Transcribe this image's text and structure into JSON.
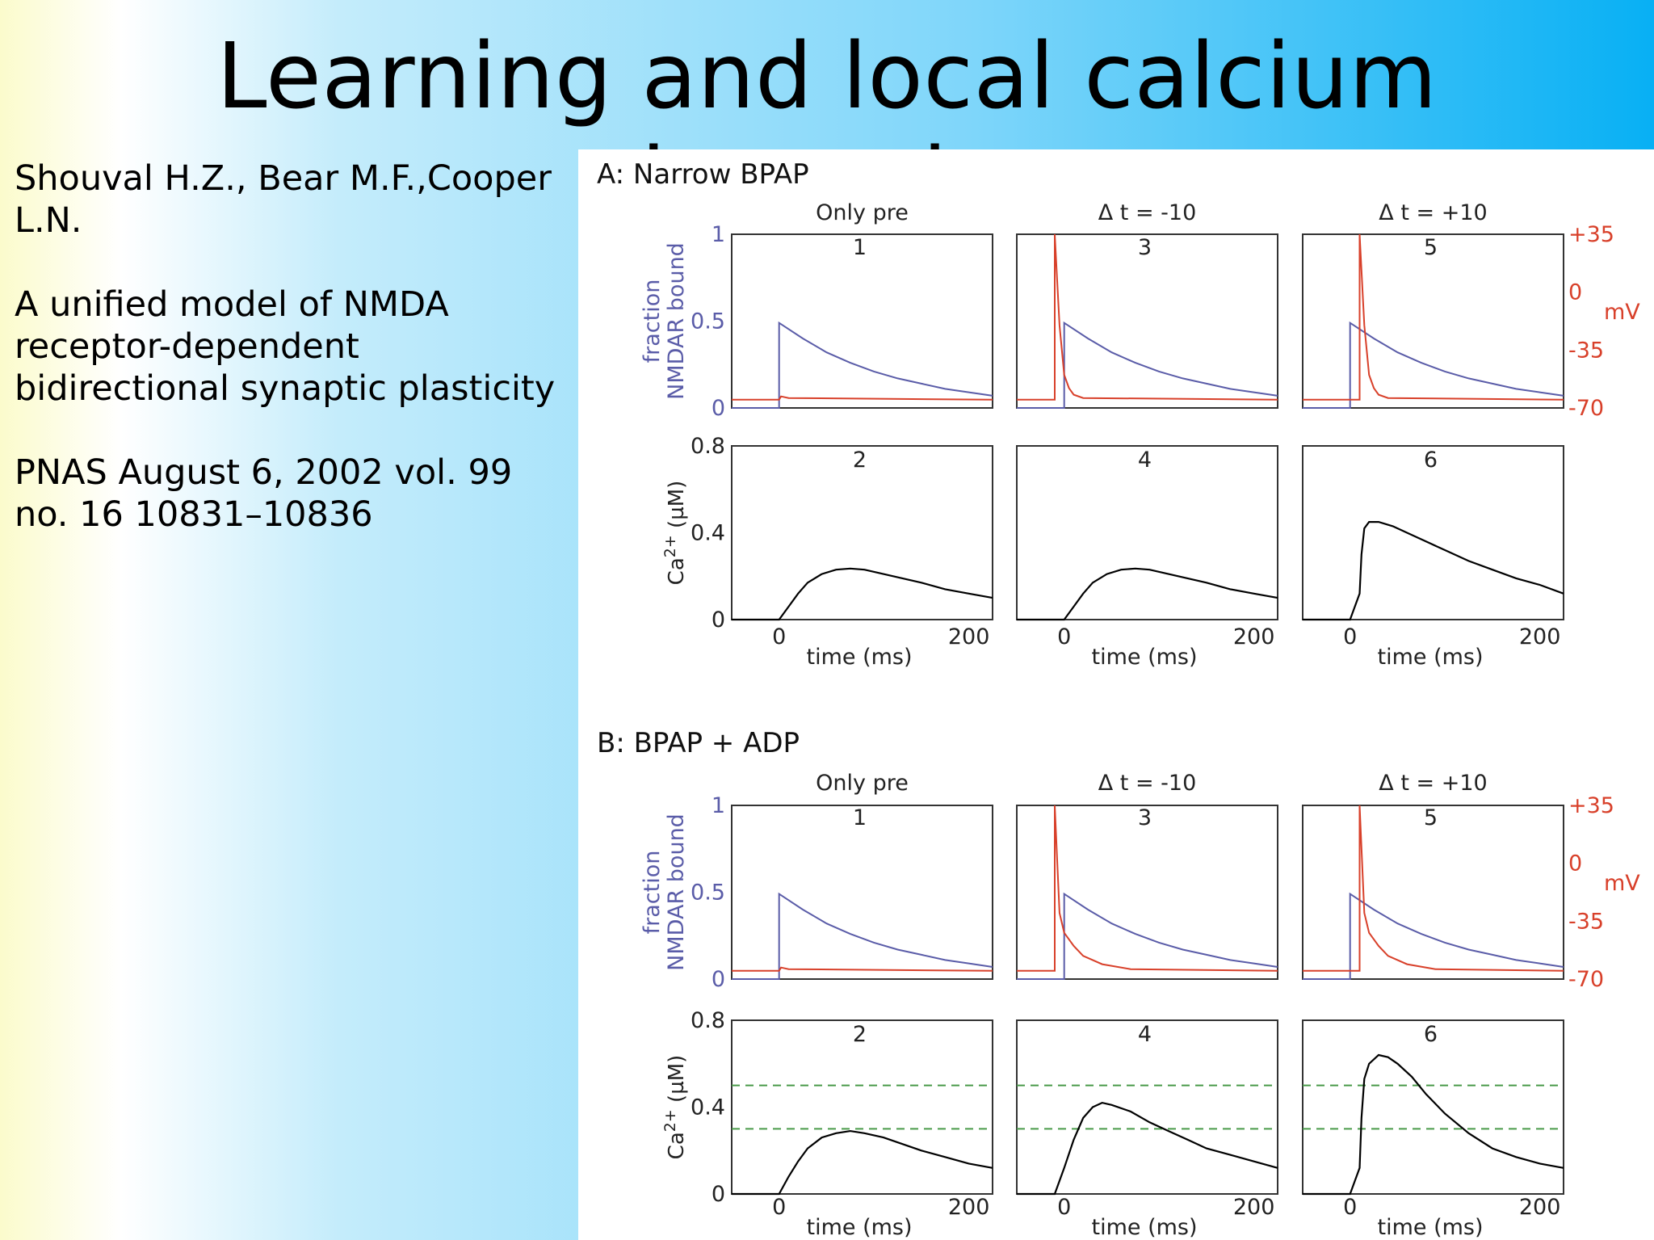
{
  "slide": {
    "title": "Learning and local calcium dynamics",
    "citation": {
      "authors": "Shouval H.Z., Bear M.F.,Cooper L.N.",
      "article": "A unified model of NMDA receptor-dependent bidirectional synaptic plasticity",
      "journal": "PNAS August 6, 2002 vol. 99 no. 16 10831–10836"
    }
  },
  "colors": {
    "nmda": "#5a5ca8",
    "voltage": "#d8402a",
    "calcium": "#000000",
    "threshold": "#4a9a4a"
  },
  "chart_data": [
    {
      "type": "line",
      "panel_title": "A: Narrow BPAP",
      "column_titles": [
        "Only pre",
        "Δ t = -10",
        "Δ t = +10"
      ],
      "top_row": {
        "subplot_numbers": [
          "1",
          "3",
          "5"
        ],
        "ylabel": "fraction NMDAR bound",
        "ylim": [
          0,
          1
        ],
        "yticks": [
          "0",
          "0.5",
          "1"
        ],
        "right_axis": {
          "label": "mV",
          "ylim": [
            -70,
            35
          ],
          "ticks": [
            "-70",
            "-35",
            "0",
            "+35"
          ]
        },
        "series": [
          {
            "name": "NMDAR bound",
            "color": "#5a5ca8",
            "curves": [
              {
                "x": [
                  -50,
                  0,
                  0,
                  25,
                  50,
                  75,
                  100,
                  125,
                  150,
                  175,
                  200,
                  225
                ],
                "y": [
                  0,
                  0,
                  0.49,
                  0.4,
                  0.32,
                  0.26,
                  0.21,
                  0.17,
                  0.14,
                  0.11,
                  0.09,
                  0.07
                ]
              },
              {
                "x": [
                  -50,
                  0,
                  0,
                  25,
                  50,
                  75,
                  100,
                  125,
                  150,
                  175,
                  200,
                  225
                ],
                "y": [
                  0,
                  0,
                  0.49,
                  0.4,
                  0.32,
                  0.26,
                  0.21,
                  0.17,
                  0.14,
                  0.11,
                  0.09,
                  0.07
                ]
              },
              {
                "x": [
                  -50,
                  0,
                  0,
                  25,
                  50,
                  75,
                  100,
                  125,
                  150,
                  175,
                  200,
                  225
                ],
                "y": [
                  0,
                  0,
                  0.49,
                  0.4,
                  0.32,
                  0.26,
                  0.21,
                  0.17,
                  0.14,
                  0.11,
                  0.09,
                  0.07
                ]
              }
            ]
          },
          {
            "name": "membrane potential (mV)",
            "color": "#d8402a",
            "curves": [
              {
                "x": [
                  -50,
                  0,
                  2,
                  10,
                  225
                ],
                "y": [
                  -65,
                  -65,
                  -63,
                  -64,
                  -65
                ]
              },
              {
                "x": [
                  -50,
                  -10,
                  -10,
                  -5,
                  0,
                  5,
                  10,
                  20,
                  225
                ],
                "y": [
                  -65,
                  -65,
                  35,
                  -20,
                  -50,
                  -58,
                  -62,
                  -64,
                  -65
                ]
              },
              {
                "x": [
                  -50,
                  10,
                  10,
                  15,
                  20,
                  25,
                  30,
                  40,
                  225
                ],
                "y": [
                  -65,
                  -65,
                  35,
                  -20,
                  -50,
                  -58,
                  -62,
                  -64,
                  -65
                ]
              }
            ]
          }
        ]
      },
      "bottom_row": {
        "subplot_numbers": [
          "2",
          "4",
          "6"
        ],
        "ylabel": "Ca2+ (µM)",
        "ylim": [
          0,
          0.8
        ],
        "yticks": [
          "0",
          "0.4",
          "0.8"
        ],
        "xlabel": "time (ms)",
        "xlim": [
          -50,
          225
        ],
        "xticks": [
          "0",
          "200"
        ],
        "series": [
          {
            "name": "calcium",
            "color": "#000000",
            "curves": [
              {
                "x": [
                  -50,
                  0,
                  10,
                  20,
                  30,
                  45,
                  60,
                  75,
                  90,
                  110,
                  130,
                  150,
                  175,
                  200,
                  225
                ],
                "y": [
                  0,
                  0,
                  0.06,
                  0.12,
                  0.17,
                  0.21,
                  0.23,
                  0.235,
                  0.23,
                  0.21,
                  0.19,
                  0.17,
                  0.14,
                  0.12,
                  0.1
                ]
              },
              {
                "x": [
                  -50,
                  0,
                  10,
                  20,
                  30,
                  45,
                  60,
                  75,
                  90,
                  110,
                  130,
                  150,
                  175,
                  200,
                  225
                ],
                "y": [
                  0,
                  0,
                  0.06,
                  0.12,
                  0.17,
                  0.21,
                  0.23,
                  0.235,
                  0.23,
                  0.21,
                  0.19,
                  0.17,
                  0.14,
                  0.12,
                  0.1
                ]
              },
              {
                "x": [
                  -50,
                  0,
                  10,
                  12,
                  15,
                  20,
                  30,
                  45,
                  60,
                  80,
                  100,
                  125,
                  150,
                  175,
                  200,
                  225
                ],
                "y": [
                  0,
                  0,
                  0.12,
                  0.3,
                  0.42,
                  0.45,
                  0.45,
                  0.43,
                  0.4,
                  0.36,
                  0.32,
                  0.27,
                  0.23,
                  0.19,
                  0.16,
                  0.12
                ]
              }
            ]
          }
        ]
      }
    },
    {
      "type": "line",
      "panel_title": "B: BPAP + ADP",
      "column_titles": [
        "Only pre",
        "Δ t = -10",
        "Δ t = +10"
      ],
      "top_row": {
        "subplot_numbers": [
          "1",
          "3",
          "5"
        ],
        "ylabel": "fraction NMDAR bound",
        "ylim": [
          0,
          1
        ],
        "yticks": [
          "0",
          "0.5",
          "1"
        ],
        "right_axis": {
          "label": "mV",
          "ylim": [
            -70,
            35
          ],
          "ticks": [
            "-70",
            "-35",
            "0",
            "+35"
          ]
        },
        "series": [
          {
            "name": "NMDAR bound",
            "color": "#5a5ca8",
            "curves": [
              {
                "x": [
                  -50,
                  0,
                  0,
                  25,
                  50,
                  75,
                  100,
                  125,
                  150,
                  175,
                  200,
                  225
                ],
                "y": [
                  0,
                  0,
                  0.49,
                  0.4,
                  0.32,
                  0.26,
                  0.21,
                  0.17,
                  0.14,
                  0.11,
                  0.09,
                  0.07
                ]
              },
              {
                "x": [
                  -50,
                  0,
                  0,
                  25,
                  50,
                  75,
                  100,
                  125,
                  150,
                  175,
                  200,
                  225
                ],
                "y": [
                  0,
                  0,
                  0.49,
                  0.4,
                  0.32,
                  0.26,
                  0.21,
                  0.17,
                  0.14,
                  0.11,
                  0.09,
                  0.07
                ]
              },
              {
                "x": [
                  -50,
                  0,
                  0,
                  25,
                  50,
                  75,
                  100,
                  125,
                  150,
                  175,
                  200,
                  225
                ],
                "y": [
                  0,
                  0,
                  0.49,
                  0.4,
                  0.32,
                  0.26,
                  0.21,
                  0.17,
                  0.14,
                  0.11,
                  0.09,
                  0.07
                ]
              }
            ]
          },
          {
            "name": "membrane potential (mV)",
            "color": "#d8402a",
            "curves": [
              {
                "x": [
                  -50,
                  0,
                  2,
                  10,
                  225
                ],
                "y": [
                  -65,
                  -65,
                  -63,
                  -64,
                  -65
                ]
              },
              {
                "x": [
                  -50,
                  -10,
                  -10,
                  -5,
                  0,
                  10,
                  20,
                  40,
                  70,
                  225
                ],
                "y": [
                  -65,
                  -65,
                  35,
                  -30,
                  -42,
                  -50,
                  -56,
                  -61,
                  -64,
                  -65
                ]
              },
              {
                "x": [
                  -50,
                  10,
                  10,
                  15,
                  20,
                  30,
                  40,
                  60,
                  90,
                  225
                ],
                "y": [
                  -65,
                  -65,
                  35,
                  -30,
                  -42,
                  -50,
                  -56,
                  -61,
                  -64,
                  -65
                ]
              }
            ]
          }
        ]
      },
      "bottom_row": {
        "subplot_numbers": [
          "2",
          "4",
          "6"
        ],
        "ylabel": "Ca2+ (µM)",
        "ylim": [
          0,
          0.8
        ],
        "yticks": [
          "0",
          "0.4",
          "0.8"
        ],
        "xlabel": "time (ms)",
        "xlim": [
          -50,
          225
        ],
        "xticks": [
          "0",
          "200"
        ],
        "thresholds": [
          0.3,
          0.5
        ],
        "series": [
          {
            "name": "calcium",
            "color": "#000000",
            "curves": [
              {
                "x": [
                  -50,
                  0,
                  10,
                  20,
                  30,
                  45,
                  60,
                  75,
                  90,
                  110,
                  130,
                  150,
                  175,
                  200,
                  225
                ],
                "y": [
                  0,
                  0,
                  0.08,
                  0.15,
                  0.21,
                  0.26,
                  0.28,
                  0.29,
                  0.28,
                  0.26,
                  0.23,
                  0.2,
                  0.17,
                  0.14,
                  0.12
                ]
              },
              {
                "x": [
                  -50,
                  -10,
                  0,
                  10,
                  20,
                  30,
                  40,
                  50,
                  70,
                  90,
                  110,
                  130,
                  150,
                  175,
                  200,
                  225
                ],
                "y": [
                  0,
                  0,
                  0.12,
                  0.25,
                  0.35,
                  0.4,
                  0.42,
                  0.41,
                  0.38,
                  0.33,
                  0.29,
                  0.25,
                  0.21,
                  0.18,
                  0.15,
                  0.12
                ]
              },
              {
                "x": [
                  -50,
                  0,
                  10,
                  12,
                  15,
                  20,
                  30,
                  40,
                  50,
                  65,
                  80,
                  100,
                  125,
                  150,
                  175,
                  200,
                  225
                ],
                "y": [
                  0,
                  0,
                  0.12,
                  0.35,
                  0.53,
                  0.6,
                  0.64,
                  0.63,
                  0.6,
                  0.54,
                  0.46,
                  0.37,
                  0.28,
                  0.21,
                  0.17,
                  0.14,
                  0.12
                ]
              }
            ]
          }
        ]
      }
    }
  ]
}
